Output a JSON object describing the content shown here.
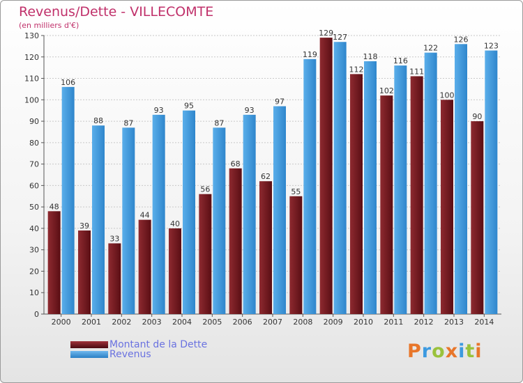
{
  "header": {
    "title": "Revenus/Dette - VILLECOMTE",
    "subtitle": "(en milliers d'€)"
  },
  "colors": {
    "debt": "#7a1a22",
    "revenue": "#3c9ae0",
    "title": "#c0306a",
    "legend_text": "#6a72e0"
  },
  "chart_data": {
    "type": "bar",
    "title": "Revenus/Dette - VILLECOMTE",
    "ylabel": "(en milliers d'€)",
    "xlabel": "",
    "ylim": [
      0,
      130
    ],
    "y_ticks": [
      0,
      10,
      20,
      30,
      40,
      50,
      60,
      70,
      80,
      90,
      100,
      110,
      120,
      130
    ],
    "grid": true,
    "legend_position": "bottom-left",
    "categories": [
      "2000",
      "2001",
      "2002",
      "2003",
      "2004",
      "2005",
      "2006",
      "2007",
      "2008",
      "2009",
      "2010",
      "2011",
      "2012",
      "2013",
      "2014"
    ],
    "series": [
      {
        "name": "Montant de la Dette",
        "values": [
          48,
          39,
          33,
          44,
          40,
          56,
          68,
          62,
          55,
          129,
          112,
          102,
          111,
          100,
          90
        ]
      },
      {
        "name": "Revenus",
        "values": [
          106,
          88,
          87,
          93,
          95,
          87,
          93,
          97,
          119,
          127,
          118,
          116,
          122,
          126,
          123
        ]
      }
    ]
  },
  "legend": {
    "debt_label": "Montant de la Dette",
    "revenue_label": "Revenus"
  },
  "brand": {
    "letters": [
      "P",
      "r",
      "o",
      "x",
      "i",
      "t",
      "i"
    ],
    "letter_colors": [
      "#e8762a",
      "#3c9ae0",
      "#9ac23c",
      "#e8762a",
      "#3c9ae0",
      "#9ac23c",
      "#e8762a"
    ]
  }
}
